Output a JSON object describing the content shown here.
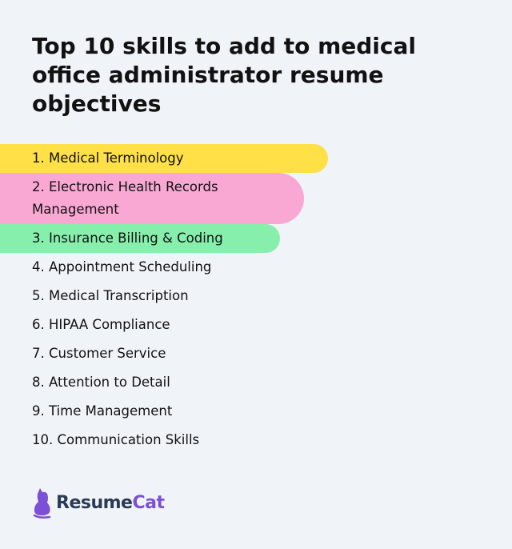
{
  "title": "Top 10 skills to add to medical office administrator resume objectives",
  "items": [
    {
      "label": "1. Medical Terminology",
      "highlight": "#ffe047"
    },
    {
      "label": "2. Electronic Health Records Management",
      "highlight": "#f9a8d4"
    },
    {
      "label": "3. Insurance Billing & Coding",
      "highlight": "#86efac"
    },
    {
      "label": "4. Appointment Scheduling"
    },
    {
      "label": "5. Medical Transcription"
    },
    {
      "label": "6. HIPAA Compliance"
    },
    {
      "label": "7. Customer Service"
    },
    {
      "label": "8. Attention to Detail"
    },
    {
      "label": "9. Time Management"
    },
    {
      "label": "10. Communication Skills"
    }
  ],
  "logo": {
    "part1": "Resume",
    "part2": "Cat",
    "icon": "cat-icon",
    "brand_color": "#7b4fd6"
  }
}
